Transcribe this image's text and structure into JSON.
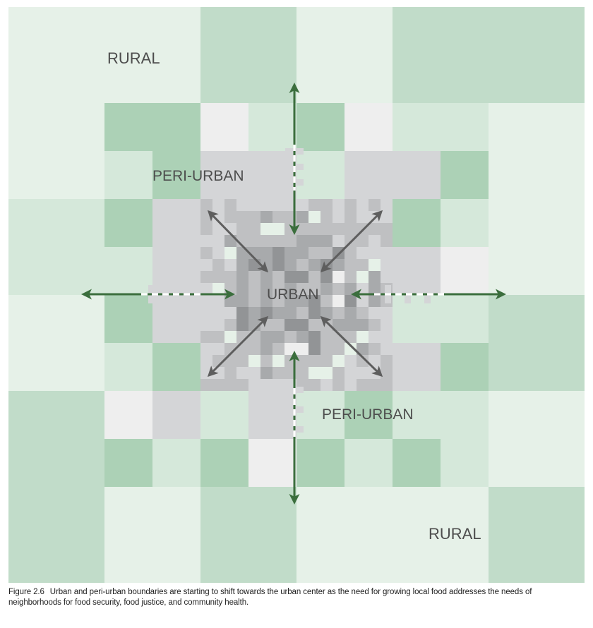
{
  "labels": {
    "rural_top": "RURAL",
    "peri_urban_top": "PERI-URBAN",
    "urban": "URBAN",
    "peri_urban_bottom": "PERI-URBAN",
    "rural_bottom": "RURAL"
  },
  "caption": {
    "figure_number": "Figure 2.6",
    "text": "Urban and peri-urban boundaries are starting to shift towards the urban center as the need for growing local food addresses the needs of neighborhoods for food security, food justice, and community health."
  },
  "colors": {
    "rural_light": "#e6f1e8",
    "rural_mid": "#d5e8da",
    "rural_dark": "#c1dcc9",
    "peri_green": "#acd1b6",
    "peri_gray": "#d4d5d7",
    "peri_white": "#eeeeee",
    "urban_light": "#bfc0c2",
    "urban_mid": "#a8aaac",
    "urban_dark": "#929496",
    "arrow_green": "#3b6e3d",
    "arrow_gray": "#5e5e5e"
  },
  "arrows": {
    "outward_green": [
      "north",
      "south",
      "east",
      "west"
    ],
    "inward_gray": [
      "north-west",
      "north-east",
      "south-west",
      "south-east"
    ]
  }
}
